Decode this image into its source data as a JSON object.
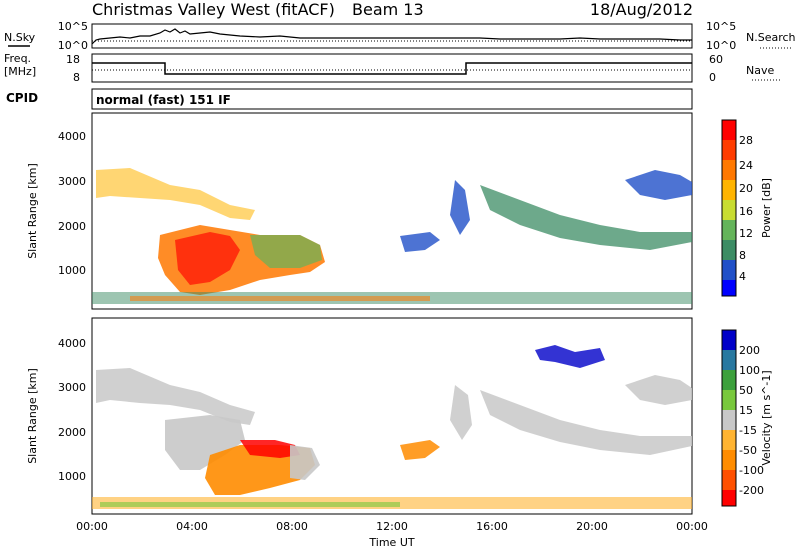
{
  "header": {
    "station": "Christmas Valley West (fitACF)",
    "beam": "Beam 13",
    "date": "18/Aug/2012"
  },
  "noise_panel": {
    "left_label": "N.Sky",
    "right_label": "N.Search",
    "left_ticks": [
      "10^5",
      "10^0"
    ],
    "right_ticks": [
      "10^5",
      "10^0"
    ]
  },
  "freq_panel": {
    "left_label_1": "Freq.",
    "left_label_2": "[MHz]",
    "right_label": "Nave",
    "left_ticks": [
      "18",
      "8"
    ],
    "right_ticks": [
      "60",
      "0"
    ]
  },
  "cpid": {
    "label": "CPID",
    "value": "normal (fast) 151 IF"
  },
  "colors": {
    "power_scale": [
      "#0000ff",
      "#2050c8",
      "#3c8c64",
      "#64b45a",
      "#c8dc32",
      "#ffb400",
      "#ff7800",
      "#ff3c00",
      "#ff0000"
    ],
    "velocity_scale": [
      "#ff0000",
      "#ff5000",
      "#ff8c00",
      "#ffb432",
      "#c8c8c8",
      "#78c83c",
      "#3ca03c",
      "#2878a0",
      "#0000c8"
    ]
  },
  "chart_data": [
    {
      "type": "heatmap",
      "title": "Power",
      "xlabel": "",
      "ylabel": "Slant Range [km]",
      "xlim": [
        "00:00",
        "24:00"
      ],
      "ylim": [
        180,
        4550
      ],
      "y_ticks": [
        "1000",
        "2000",
        "3000",
        "4000"
      ],
      "colorbar_label": "Power [dB]",
      "colorbar_ticks": [
        "28",
        "24",
        "20",
        "16",
        "12",
        "8",
        "4"
      ],
      "colorbar_range": [
        0,
        32
      ],
      "grid": false
    },
    {
      "type": "heatmap",
      "title": "Velocity",
      "xlabel": "Time UT",
      "ylabel": "Slant Range [km]",
      "xlim": [
        "00:00",
        "24:00"
      ],
      "ylim": [
        180,
        4550
      ],
      "x_ticks": [
        "00:00",
        "04:00",
        "08:00",
        "12:00",
        "16:00",
        "20:00",
        "00:00"
      ],
      "y_ticks": [
        "1000",
        "2000",
        "3000",
        "4000"
      ],
      "colorbar_label": "Velocity [m s^-1]",
      "colorbar_ticks": [
        "200",
        "100",
        "50",
        "15",
        "-15",
        "-50",
        "-100",
        "-200"
      ],
      "colorbar_range": [
        -250,
        250
      ],
      "grid": false
    }
  ]
}
